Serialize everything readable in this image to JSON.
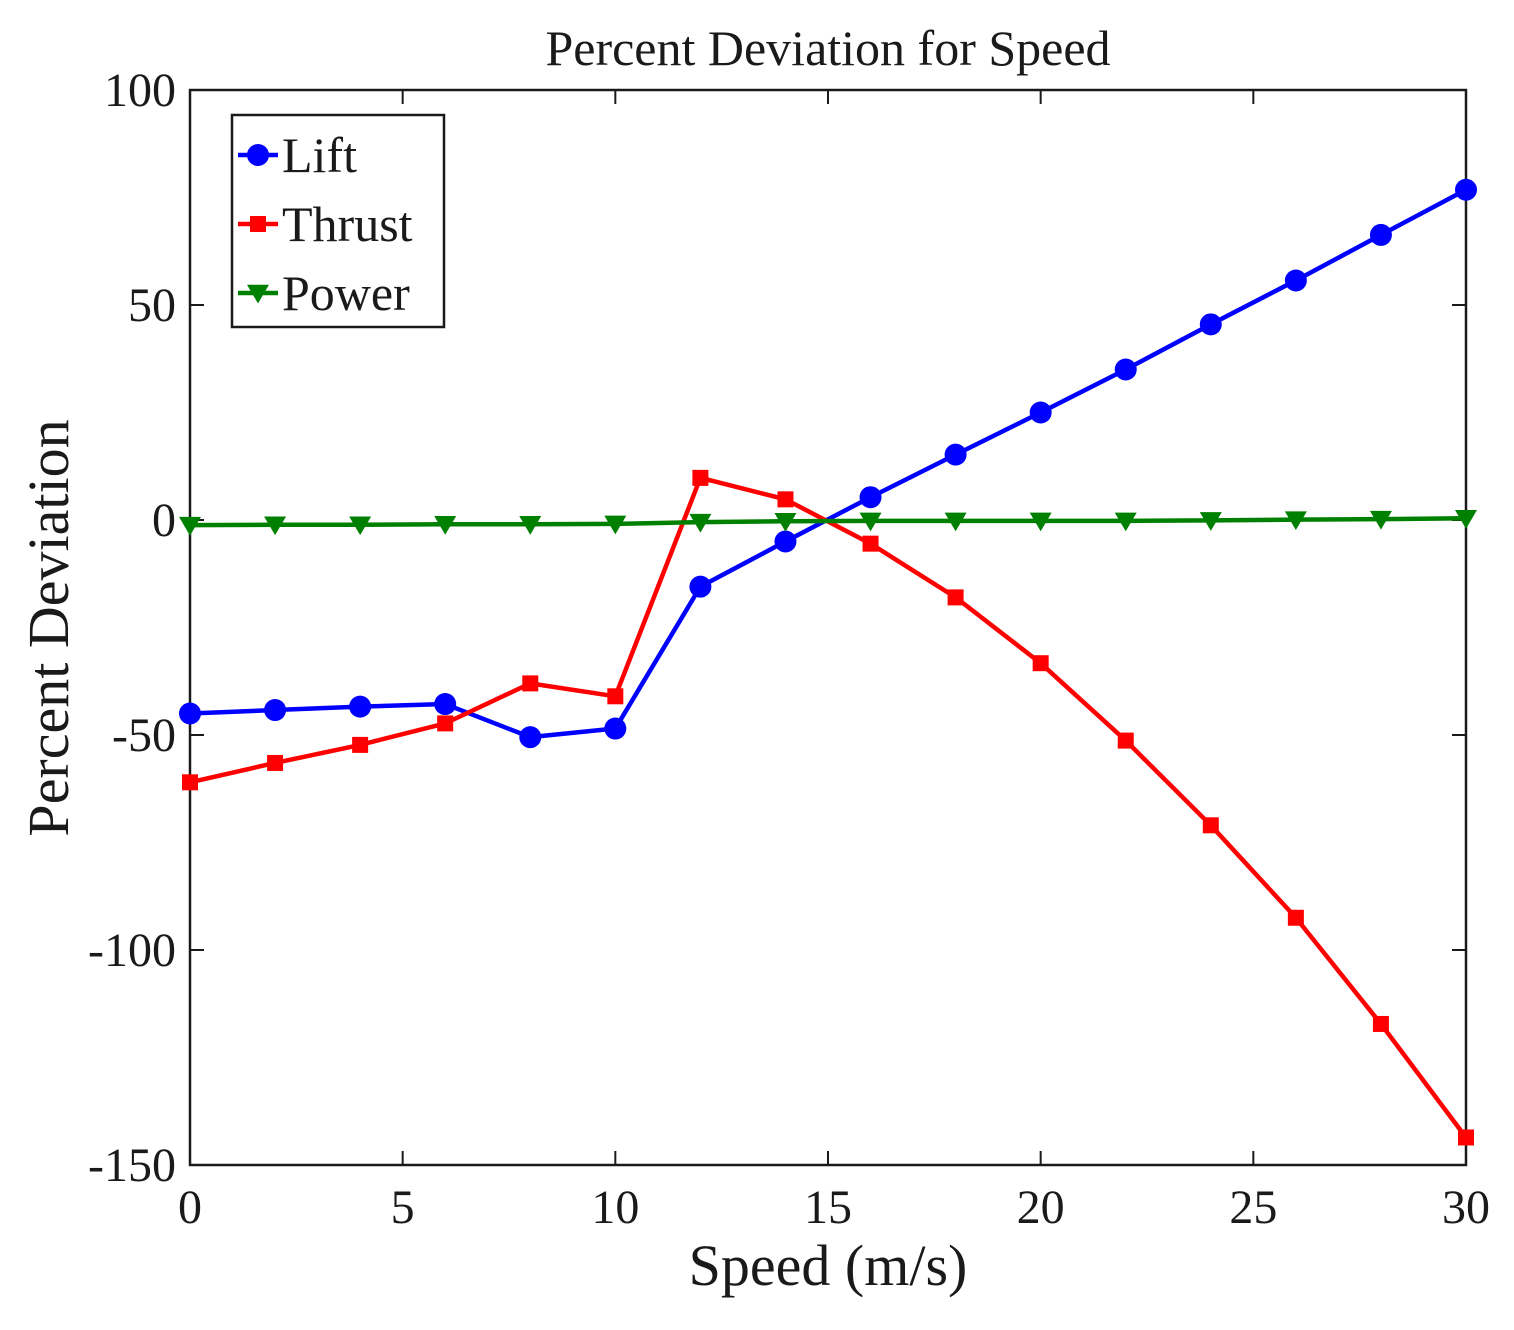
{
  "chart_data": {
    "type": "line",
    "title": "Percent Deviation for Speed",
    "xlabel": "Speed (m/s)",
    "ylabel": "Percent Deviation",
    "xlim": [
      0,
      30
    ],
    "ylim": [
      -150,
      100
    ],
    "xticks": [
      0,
      5,
      10,
      15,
      20,
      25,
      30
    ],
    "yticks": [
      100,
      50,
      0,
      -50,
      -100,
      -150
    ],
    "grid": false,
    "legend_position": "top-left",
    "x": [
      0,
      2,
      4,
      6,
      8,
      10,
      12,
      14,
      16,
      18,
      20,
      22,
      24,
      26,
      28,
      30
    ],
    "series": [
      {
        "name": "Lift",
        "color": "#0000ff",
        "marker": "circle",
        "values": [
          -45,
          -44.2,
          -43.4,
          -42.8,
          -50.5,
          -48.5,
          -15.5,
          -5,
          5.3,
          15.2,
          25,
          35,
          45.5,
          55.7,
          66.3,
          76.8
        ]
      },
      {
        "name": "Thrust",
        "color": "#ff0000",
        "marker": "square",
        "values": [
          -61,
          -56.5,
          -52.3,
          -47.3,
          -38,
          -41,
          9.8,
          4.8,
          -5.5,
          -18,
          -33.3,
          -51.3,
          -71,
          -92.5,
          -117.2,
          -143.6
        ]
      },
      {
        "name": "Power",
        "color": "#008000",
        "marker": "triangle-down",
        "values": [
          -1.2,
          -1.1,
          -1.1,
          -1.0,
          -1.0,
          -0.9,
          -0.5,
          -0.3,
          -0.2,
          -0.2,
          -0.2,
          -0.2,
          -0.1,
          0.1,
          0.2,
          0.4
        ]
      }
    ]
  }
}
